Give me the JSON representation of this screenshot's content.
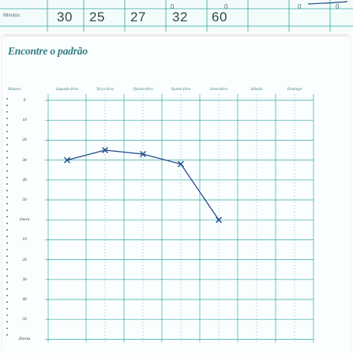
{
  "back_sheet": {
    "label": "Minutos",
    "ticks": [
      "0",
      "0",
      "0",
      "0"
    ],
    "values": [
      "30",
      "25",
      "27",
      "32",
      "60"
    ]
  },
  "sheet": {
    "title": "Encontre o padrão",
    "columns": [
      "Minutos",
      "Segunda-feira",
      "Terça-feira",
      "Quarta-feira",
      "Quinta-feira",
      "Sexta-feira",
      "Sábado",
      "Domingo"
    ],
    "rows": [
      "0",
      "10",
      "20",
      "30",
      "40",
      "50",
      "1hora",
      "10",
      "20",
      "30",
      "40",
      "50",
      "2horas"
    ]
  },
  "chart_data": {
    "type": "line",
    "x": [
      "Segunda-feira",
      "Terça-feira",
      "Quarta-feira",
      "Quinta-feira",
      "Sexta-feira"
    ],
    "series": [
      {
        "values": [
          30,
          25,
          27,
          32,
          60
        ],
        "marker": "x",
        "color": "#1f4a8a"
      }
    ],
    "y_unit": "minutos",
    "ylim": [
      0,
      120
    ],
    "grid": true,
    "grid_color": "#2fa7a3"
  },
  "colors": {
    "title": "#2f7f82",
    "grid": "#2fa7a3",
    "pen": "#1f4a8a"
  }
}
